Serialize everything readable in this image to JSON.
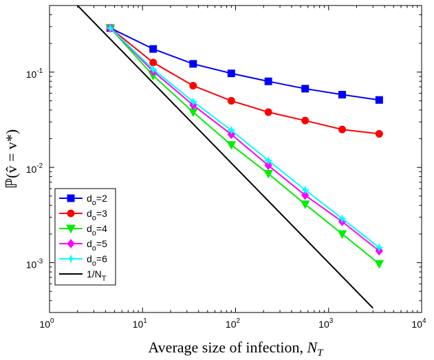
{
  "chart_data": {
    "type": "line",
    "xscale": "log",
    "yscale": "log",
    "xlim": [
      1,
      10000
    ],
    "ylim": [
      0.0003,
      0.5
    ],
    "xlabel_text": "Average size of infection, ",
    "xlabel_var": "N",
    "xlabel_sub": "T",
    "ylabel": "ℙ(v̂ = v*)",
    "x_ticks": [
      {
        "value": 1,
        "base": "10",
        "exp": "0"
      },
      {
        "value": 10,
        "base": "10",
        "exp": "1"
      },
      {
        "value": 100,
        "base": "10",
        "exp": "2"
      },
      {
        "value": 1000,
        "base": "10",
        "exp": "3"
      },
      {
        "value": 10000,
        "base": "10",
        "exp": "4"
      }
    ],
    "y_ticks": [
      {
        "value": 0.001,
        "base": "10",
        "exp": "-3"
      },
      {
        "value": 0.01,
        "base": "10",
        "exp": "-2"
      },
      {
        "value": 0.1,
        "base": "10",
        "exp": "-1"
      }
    ],
    "x": [
      4.5,
      13,
      35,
      90,
      225,
      560,
      1400,
      3500
    ],
    "series": [
      {
        "name": "d",
        "sub": "o",
        "suffix": "=2",
        "color": "#0000ff",
        "marker": "square",
        "values": [
          0.29,
          0.175,
          0.122,
          0.097,
          0.08,
          0.067,
          0.058,
          0.051
        ]
      },
      {
        "name": "d",
        "sub": "o",
        "suffix": "=3",
        "color": "#ff0000",
        "marker": "circle",
        "values": [
          0.29,
          0.126,
          0.072,
          0.05,
          0.038,
          0.031,
          0.025,
          0.0225
        ]
      },
      {
        "name": "d",
        "sub": "o",
        "suffix": "=4",
        "color": "#00ee00",
        "marker": "triangle-down",
        "values": [
          0.29,
          0.092,
          0.038,
          0.0172,
          0.0086,
          0.0041,
          0.002,
          0.00097
        ]
      },
      {
        "name": "d",
        "sub": "o",
        "suffix": "=5",
        "color": "#ff00ff",
        "marker": "diamond",
        "values": [
          0.29,
          0.102,
          0.045,
          0.0222,
          0.0105,
          0.0051,
          0.0027,
          0.00133
        ]
      },
      {
        "name": "d",
        "sub": "o",
        "suffix": "=6",
        "color": "#00ffff",
        "marker": "star",
        "values": [
          0.29,
          0.107,
          0.049,
          0.0245,
          0.0118,
          0.0058,
          0.0029,
          0.00144
        ]
      },
      {
        "name": "1/N",
        "sub": "T",
        "suffix": "",
        "color": "#000000",
        "marker": "none",
        "line_x": [
          2,
          3000
        ],
        "line_values": [
          0.5,
          0.000333
        ]
      }
    ],
    "legend_position": "bottom-left",
    "grid": false
  }
}
